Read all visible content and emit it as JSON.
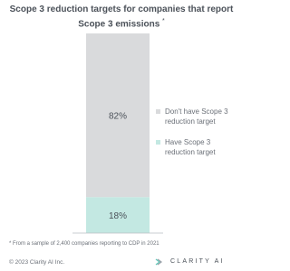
{
  "chart_data": {
    "type": "stacked_bar",
    "title": "Scope 3 reduction targets for companies that report Scope 3 emissions",
    "title_marker": "*",
    "categories": [
      null
    ],
    "series": [
      {
        "name": "Don't have Scope 3 reduction target",
        "color": "#d9dadc",
        "values": [
          82
        ],
        "value_labels": [
          "82%"
        ]
      },
      {
        "name": "Have Scope 3 reduction target",
        "color": "#c3e8e2",
        "values": [
          18
        ],
        "value_labels": [
          "18%"
        ]
      }
    ],
    "ylim": [
      0,
      100
    ]
  },
  "footnote": "* From a sample of 2,400 companies reporting to CDP in 2021",
  "copyright": "© 2023 Clarity AI Inc.",
  "logo": "CLARITY AI"
}
